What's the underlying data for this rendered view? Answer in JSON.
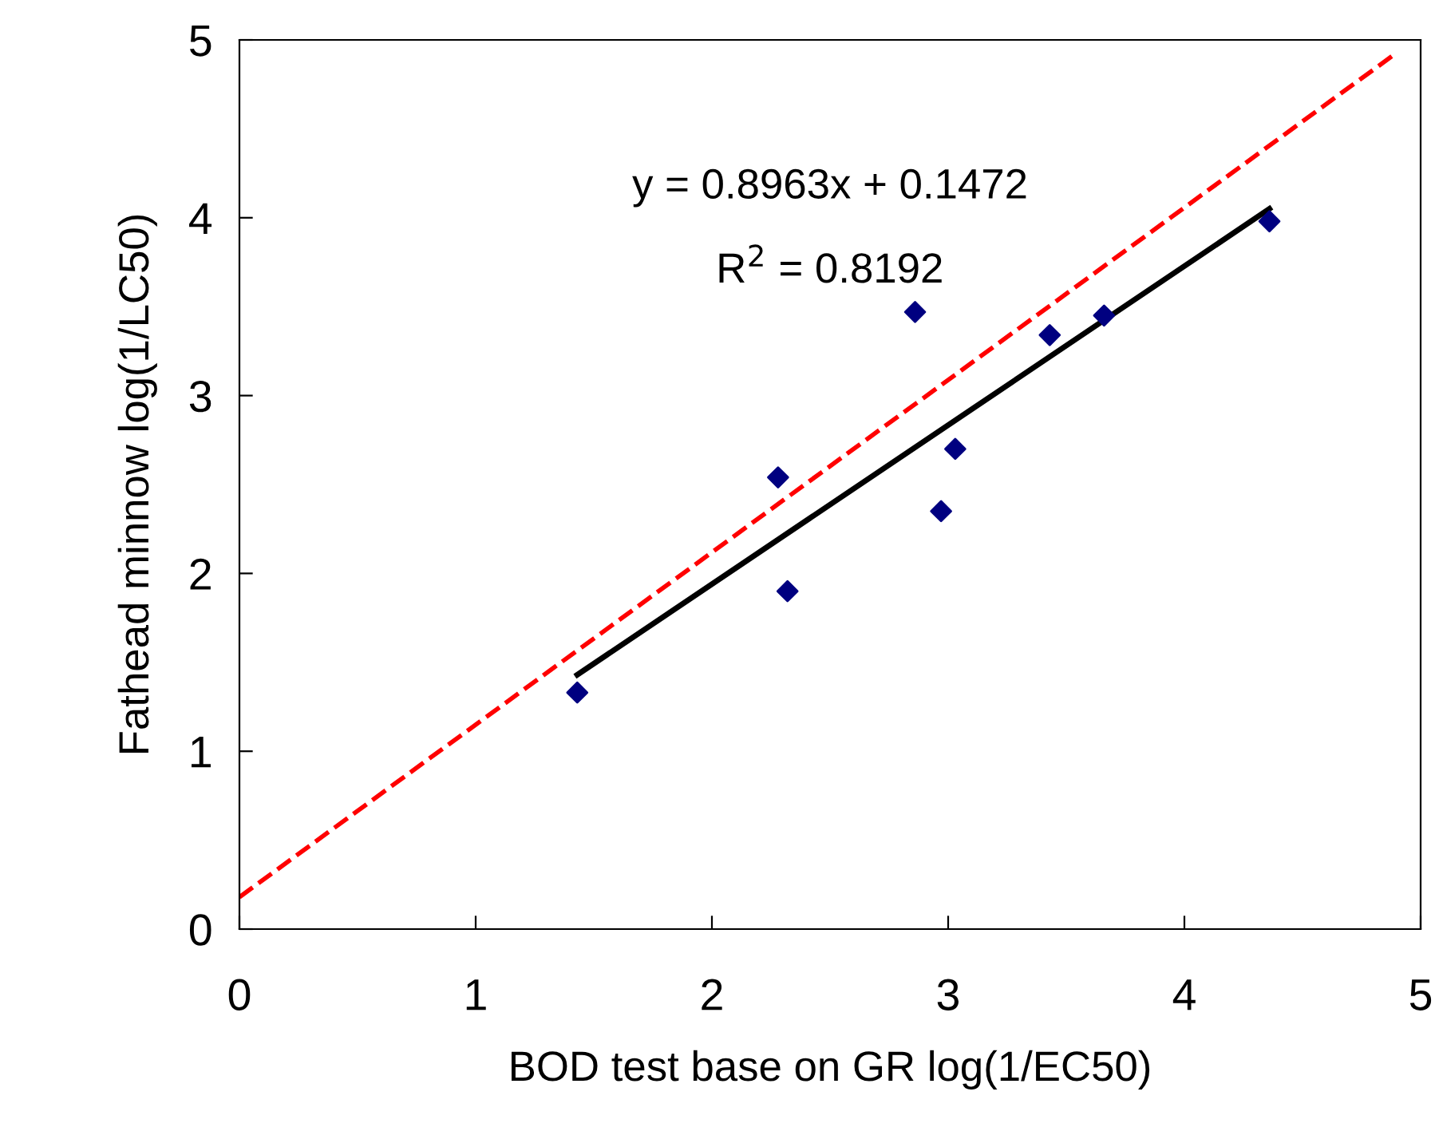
{
  "chart_data": {
    "type": "scatter",
    "xlabel": "BOD test base on GR log(1/EC50)",
    "ylabel": "Fathead minnow log(1/LC50)",
    "xlim": [
      0,
      5
    ],
    "ylim": [
      0,
      5
    ],
    "xticks": [
      0,
      1,
      2,
      3,
      4,
      5
    ],
    "yticks": [
      0,
      1,
      2,
      3,
      4,
      5
    ],
    "grid": false,
    "legend": false,
    "series": [
      {
        "color": "#000080",
        "marker": "diamond",
        "x": [
          1.43,
          2.28,
          2.32,
          2.86,
          2.97,
          3.03,
          3.43,
          3.66,
          4.36
        ],
        "values": [
          1.33,
          2.54,
          1.9,
          3.47,
          2.35,
          2.7,
          3.34,
          3.45,
          3.98
        ]
      },
      {
        "type": "line",
        "color": "#000000",
        "line_style": "solid",
        "marker": "none",
        "x": [
          1.43,
          4.36
        ],
        "values": [
          1.43,
          4.05
        ]
      },
      {
        "type": "line",
        "color": "#ff0000",
        "line_style": "dashed",
        "marker": "none",
        "x": [
          0,
          4.88
        ],
        "values": [
          0.18,
          4.91
        ]
      }
    ],
    "annotations": [
      "y = 0.8963x + 0.1472",
      "R$^{2}$ = 0.8192"
    ]
  }
}
